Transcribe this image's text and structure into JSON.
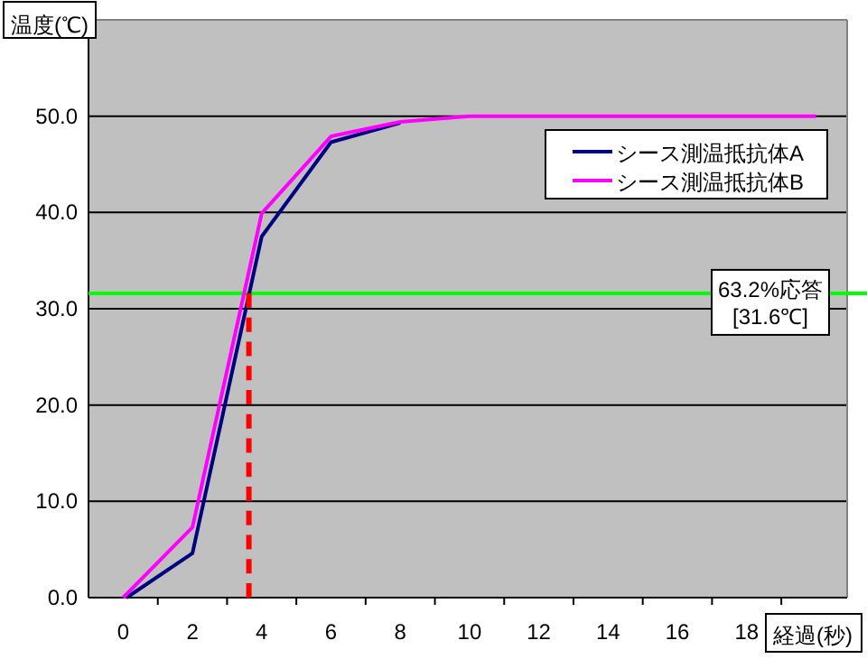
{
  "chart_data": {
    "type": "line",
    "xlabel": "経過(秒)",
    "ylabel": "温度(℃)",
    "xlim": [
      -1,
      20.9
    ],
    "ylim": [
      0,
      60
    ],
    "xticks": [
      0,
      {
        "value": 1,
        "label": null
      },
      2,
      {
        "value": 3,
        "label": null
      },
      4,
      {
        "value": 5,
        "label": null
      },
      6,
      {
        "value": 7,
        "label": null
      },
      8,
      {
        "value": 9,
        "label": null
      },
      10,
      {
        "value": 11,
        "label": null
      },
      12,
      {
        "value": 13,
        "label": null
      },
      14,
      {
        "value": 15,
        "label": null
      },
      16,
      {
        "value": 17,
        "label": null
      },
      18,
      {
        "value": 19,
        "label": null
      }
    ],
    "yticks": [
      {
        "value": 0,
        "label": "0.0"
      },
      {
        "value": 10,
        "label": "10.0"
      },
      {
        "value": 20,
        "label": "20.0"
      },
      {
        "value": 30,
        "label": "30.0"
      },
      {
        "value": 40,
        "label": "40.0"
      },
      {
        "value": 50,
        "label": "50.0"
      },
      {
        "value": 60,
        "label": null
      }
    ],
    "grid": "y",
    "legend": "top right",
    "marker": "none",
    "line_style": "solid",
    "series": [
      {
        "name": "シース測温抵抗体A",
        "color": "#000080",
        "x": [
          0.1,
          2,
          4,
          6,
          8
        ],
        "values": [
          0,
          4.6,
          37.5,
          47.3,
          49.3
        ]
      },
      {
        "name": "シース測温抵抗体B",
        "color": "#ff00ff",
        "x": [
          0,
          2,
          4,
          6,
          8,
          10,
          20
        ],
        "values": [
          0,
          7.3,
          39.9,
          47.9,
          49.4,
          50,
          50
        ]
      },
      {
        "color": "#ff0000",
        "x": [
          3.63,
          3.63
        ],
        "values": [
          0,
          31.6
        ],
        "line_style": "dashed"
      }
    ],
    "ref_lines": [
      {
        "axis": "y",
        "value": 31.6,
        "label": "63.2%応答\n[31.6℃]",
        "color": "#00ff00"
      }
    ]
  }
}
